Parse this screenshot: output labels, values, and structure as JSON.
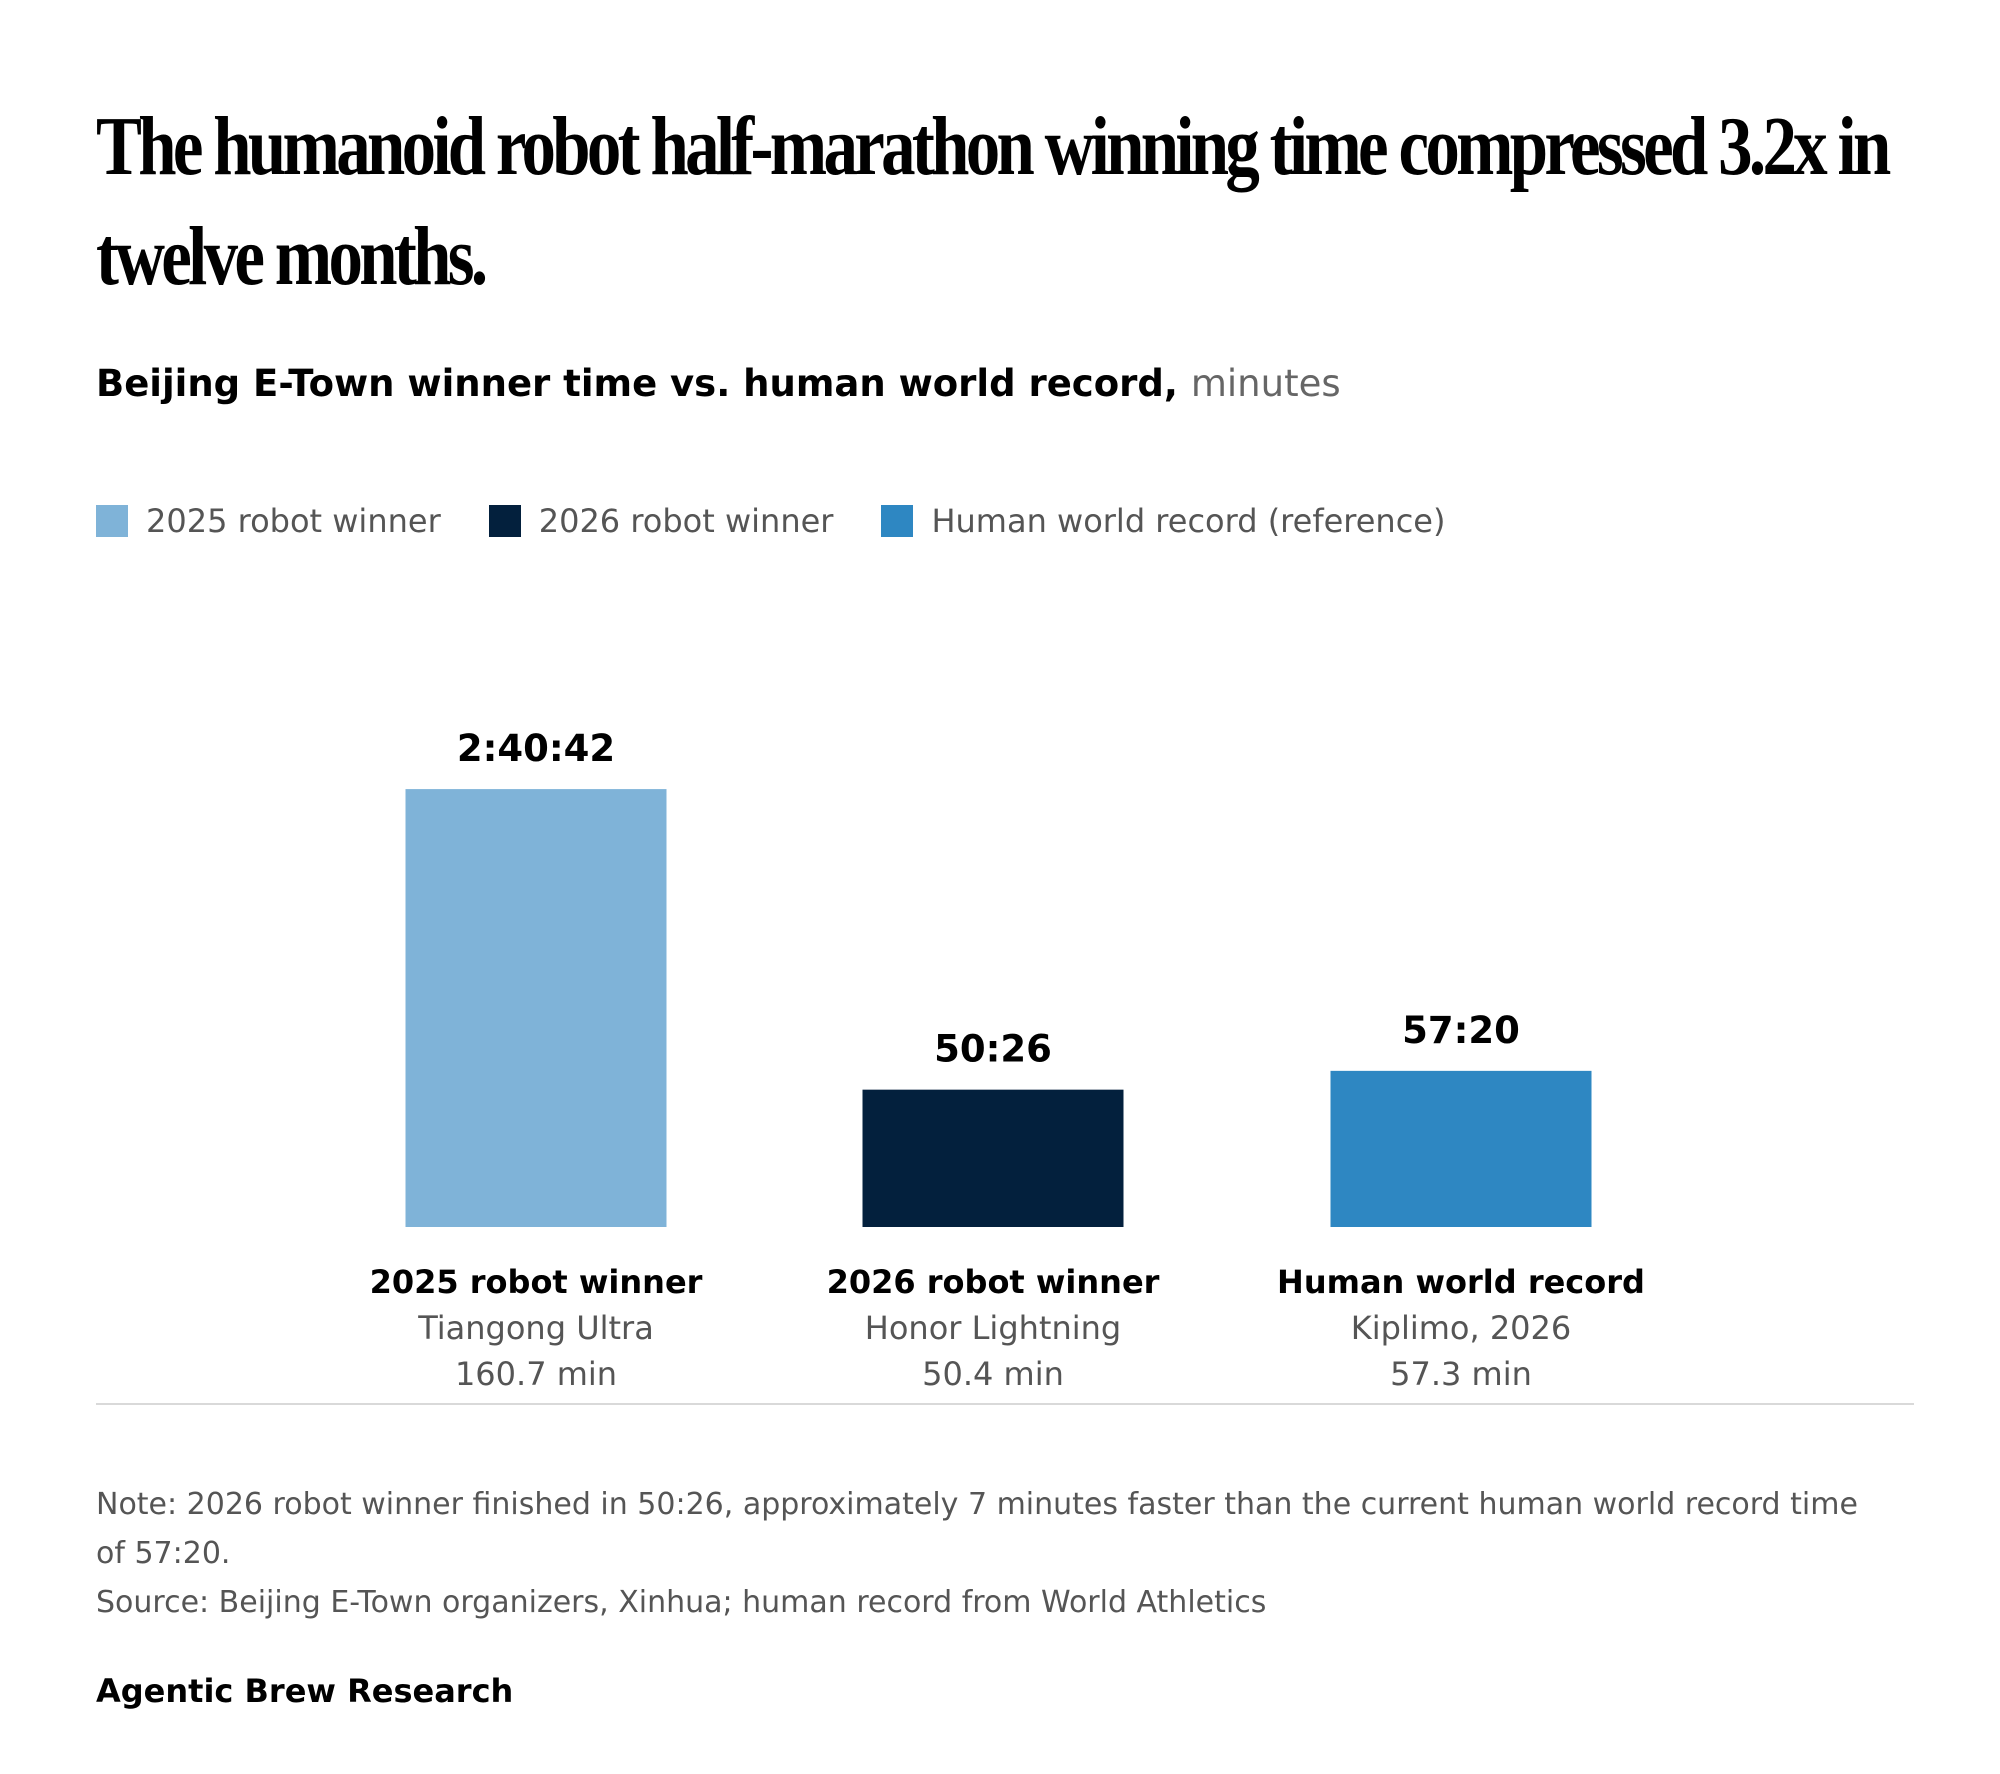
{
  "title": "The humanoid robot half-marathon winning time compressed 3.2x in twelve months.",
  "subtitle": {
    "main": "Beijing E-Town winner time vs. human world record,",
    "unit": "minutes"
  },
  "legend": [
    {
      "label": "2025 robot winner",
      "color": "#7fb3d8"
    },
    {
      "label": "2026 robot winner",
      "color": "#03203d"
    },
    {
      "label": "Human world record (reference)",
      "color": "#2e87c2"
    }
  ],
  "chart_data": {
    "type": "bar",
    "categories": [
      "2025 robot winner",
      "2026 robot winner",
      "Human world record"
    ],
    "values": [
      160.7,
      50.4,
      57.3
    ],
    "value_labels": [
      "2:40:42",
      "50:26",
      "57:20"
    ],
    "sublabels": [
      "Tiangong Ultra",
      "Honor Lightning",
      "Kiplimo, 2026"
    ],
    "unit_labels": [
      "160.7 min",
      "50.4 min",
      "57.3 min"
    ],
    "colors": [
      "#7fb3d8",
      "#03203d",
      "#2e87c2"
    ],
    "ylabel": "minutes",
    "grid": false,
    "legend_position": "top-left"
  },
  "note": "Note: 2026 robot winner finished in 50:26, approximately 7 minutes faster than the current human world record time of 57:20.",
  "source": "Source: Beijing E-Town organizers, Xinhua; human record from World Athletics",
  "footer": "Agentic Brew Research"
}
